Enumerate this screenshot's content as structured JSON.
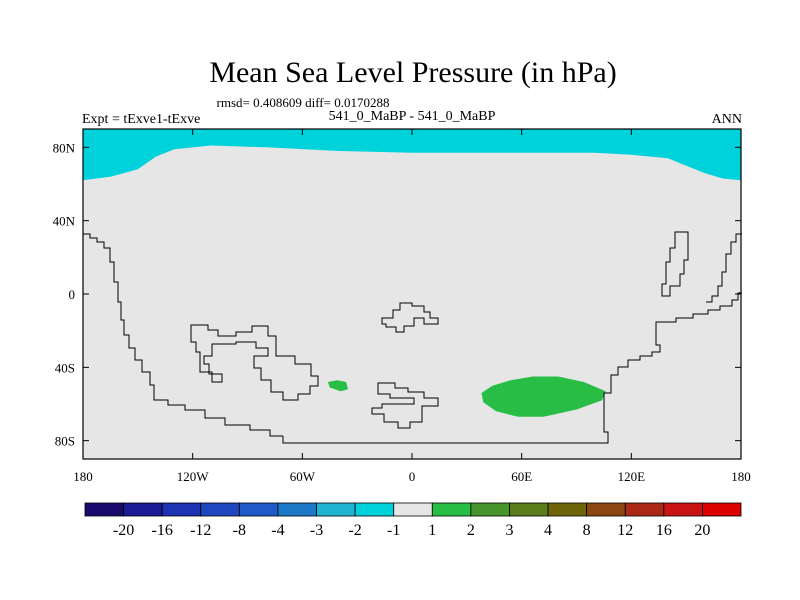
{
  "title": "Mean Sea Level Pressure (in hPa)",
  "stats": "rmsd= 0.408609 diff= 0.0170288",
  "left_label": "Expt = tExve1-tExve",
  "center_label": "541_0_MaBP - 541_0_MaBP",
  "right_label": "ANN",
  "chart_data": {
    "type": "heatmap",
    "projection": "cylindrical-equidistant",
    "lon_range": [
      -180,
      180
    ],
    "lat_range": [
      -90,
      90
    ],
    "x_ticks": [
      {
        "lon": -180,
        "label": "180"
      },
      {
        "lon": -120,
        "label": "120W"
      },
      {
        "lon": -60,
        "label": "60W"
      },
      {
        "lon": 0,
        "label": "0"
      },
      {
        "lon": 60,
        "label": "60E"
      },
      {
        "lon": 120,
        "label": "120E"
      },
      {
        "lon": 180,
        "label": "180"
      }
    ],
    "y_ticks": [
      {
        "lat": 80,
        "label": "80N"
      },
      {
        "lat": 40,
        "label": "40N"
      },
      {
        "lat": 0,
        "label": "0"
      },
      {
        "lat": -40,
        "label": "40S"
      },
      {
        "lat": -80,
        "label": "80S"
      }
    ],
    "colorbar": {
      "levels": [
        "-20",
        "-16",
        "-12",
        "-8",
        "-4",
        "-3",
        "-2",
        "-1",
        "1",
        "2",
        "3",
        "4",
        "8",
        "12",
        "16",
        "20"
      ],
      "colors": [
        "#1a0a6e",
        "#1c1c96",
        "#1e32b4",
        "#1e46be",
        "#1e5ac8",
        "#1e78c8",
        "#1eb4d2",
        "#00d2dc",
        "#e6e6e6",
        "#28be46",
        "#46962d",
        "#5a7d19",
        "#6e640a",
        "#8c4614",
        "#aa2814",
        "#c81414",
        "#dc0000"
      ]
    },
    "background_class": "-1 to 1 (near zero)",
    "background_color": "#e6e6e6",
    "regions": [
      {
        "name": "arctic-band",
        "class": "-2 to -1",
        "color": "#00d2dc",
        "outline": [
          [
            -180,
            90
          ],
          [
            180,
            90
          ],
          [
            180,
            62
          ],
          [
            170,
            63
          ],
          [
            160,
            66
          ],
          [
            150,
            70
          ],
          [
            140,
            74
          ],
          [
            120,
            76
          ],
          [
            100,
            77
          ],
          [
            80,
            77
          ],
          [
            60,
            77
          ],
          [
            40,
            77
          ],
          [
            20,
            77
          ],
          [
            0,
            77
          ],
          [
            -40,
            78
          ],
          [
            -80,
            80
          ],
          [
            -110,
            81
          ],
          [
            -130,
            79
          ],
          [
            -140,
            75
          ],
          [
            -150,
            68
          ],
          [
            -165,
            64
          ],
          [
            -180,
            62
          ]
        ]
      },
      {
        "name": "south-indian-ocean-anomaly",
        "class": "1 to 2",
        "color": "#28be46",
        "outline": [
          [
            38,
            -54
          ],
          [
            44,
            -50
          ],
          [
            54,
            -47
          ],
          [
            66,
            -45
          ],
          [
            80,
            -45
          ],
          [
            94,
            -48
          ],
          [
            106,
            -53
          ],
          [
            104,
            -58
          ],
          [
            90,
            -63
          ],
          [
            72,
            -67
          ],
          [
            58,
            -67
          ],
          [
            46,
            -64
          ],
          [
            39,
            -59
          ]
        ]
      },
      {
        "name": "small-south-atlantic-anomaly",
        "class": "1 to 2",
        "color": "#28be46",
        "outline": [
          [
            -46,
            -48
          ],
          [
            -41,
            -47
          ],
          [
            -36,
            -48
          ],
          [
            -35,
            -52
          ],
          [
            -39,
            -53
          ],
          [
            -45,
            -51
          ]
        ]
      }
    ]
  }
}
